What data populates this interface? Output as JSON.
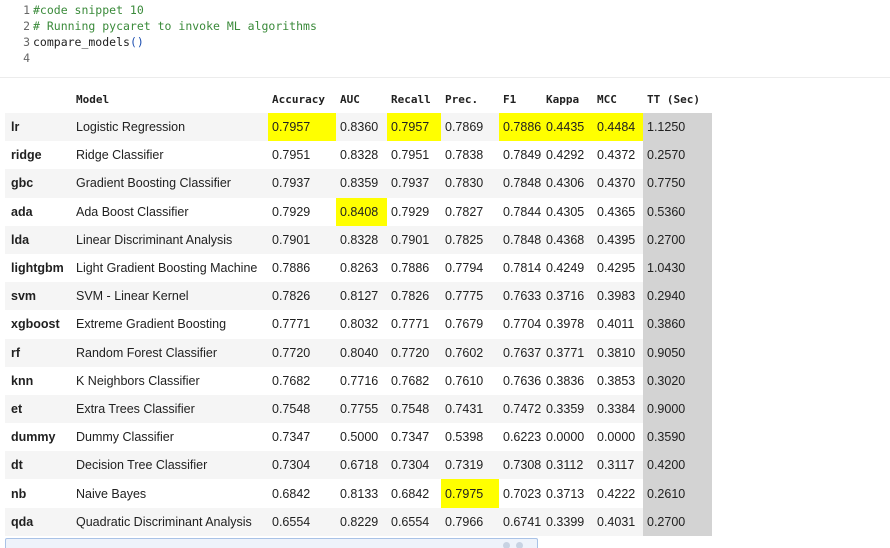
{
  "code": {
    "lines": [
      {
        "no": "1",
        "parts": [
          {
            "cls": "code-comment",
            "text": "#code snippet 10"
          }
        ]
      },
      {
        "no": "2",
        "parts": [
          {
            "cls": "code-comment",
            "text": "# Running pycaret to invoke ML algorithms"
          }
        ]
      },
      {
        "no": "3",
        "parts": [
          {
            "cls": "code-text",
            "text": "compare_models"
          },
          {
            "cls": "code-paren",
            "text": "()"
          }
        ]
      },
      {
        "no": "4",
        "parts": []
      }
    ]
  },
  "table": {
    "index_header": "",
    "columns": [
      "Model",
      "Accuracy",
      "AUC",
      "Recall",
      "Prec.",
      "F1",
      "Kappa",
      "MCC",
      "TT (Sec)"
    ],
    "highlight_color": "#ffff00",
    "tt_color": "#d3d3d3",
    "rows": [
      {
        "id": "lr",
        "cells": [
          "Logistic Regression",
          "0.7957",
          "0.8360",
          "0.7957",
          "0.7869",
          "0.7886",
          "0.4435",
          "0.4484",
          "1.1250"
        ],
        "hl": [
          1,
          3,
          5,
          6,
          7
        ]
      },
      {
        "id": "ridge",
        "cells": [
          "Ridge Classifier",
          "0.7951",
          "0.8328",
          "0.7951",
          "0.7838",
          "0.7849",
          "0.4292",
          "0.4372",
          "0.2570"
        ],
        "hl": []
      },
      {
        "id": "gbc",
        "cells": [
          "Gradient Boosting Classifier",
          "0.7937",
          "0.8359",
          "0.7937",
          "0.7830",
          "0.7848",
          "0.4306",
          "0.4370",
          "0.7750"
        ],
        "hl": []
      },
      {
        "id": "ada",
        "cells": [
          "Ada Boost Classifier",
          "0.7929",
          "0.8408",
          "0.7929",
          "0.7827",
          "0.7844",
          "0.4305",
          "0.4365",
          "0.5360"
        ],
        "hl": [
          2
        ]
      },
      {
        "id": "lda",
        "cells": [
          "Linear Discriminant Analysis",
          "0.7901",
          "0.8328",
          "0.7901",
          "0.7825",
          "0.7848",
          "0.4368",
          "0.4395",
          "0.2700"
        ],
        "hl": []
      },
      {
        "id": "lightgbm",
        "cells": [
          "Light Gradient Boosting Machine",
          "0.7886",
          "0.8263",
          "0.7886",
          "0.7794",
          "0.7814",
          "0.4249",
          "0.4295",
          "1.0430"
        ],
        "hl": []
      },
      {
        "id": "svm",
        "cells": [
          "SVM - Linear Kernel",
          "0.7826",
          "0.8127",
          "0.7826",
          "0.7775",
          "0.7633",
          "0.3716",
          "0.3983",
          "0.2940"
        ],
        "hl": []
      },
      {
        "id": "xgboost",
        "cells": [
          "Extreme Gradient Boosting",
          "0.7771",
          "0.8032",
          "0.7771",
          "0.7679",
          "0.7704",
          "0.3978",
          "0.4011",
          "0.3860"
        ],
        "hl": []
      },
      {
        "id": "rf",
        "cells": [
          "Random Forest Classifier",
          "0.7720",
          "0.8040",
          "0.7720",
          "0.7602",
          "0.7637",
          "0.3771",
          "0.3810",
          "0.9050"
        ],
        "hl": []
      },
      {
        "id": "knn",
        "cells": [
          "K Neighbors Classifier",
          "0.7682",
          "0.7716",
          "0.7682",
          "0.7610",
          "0.7636",
          "0.3836",
          "0.3853",
          "0.3020"
        ],
        "hl": []
      },
      {
        "id": "et",
        "cells": [
          "Extra Trees Classifier",
          "0.7548",
          "0.7755",
          "0.7548",
          "0.7431",
          "0.7472",
          "0.3359",
          "0.3384",
          "0.9000"
        ],
        "hl": []
      },
      {
        "id": "dummy",
        "cells": [
          "Dummy Classifier",
          "0.7347",
          "0.5000",
          "0.7347",
          "0.5398",
          "0.6223",
          "0.0000",
          "0.0000",
          "0.3590"
        ],
        "hl": []
      },
      {
        "id": "dt",
        "cells": [
          "Decision Tree Classifier",
          "0.7304",
          "0.6718",
          "0.7304",
          "0.7319",
          "0.7308",
          "0.3112",
          "0.3117",
          "0.4200"
        ],
        "hl": []
      },
      {
        "id": "nb",
        "cells": [
          "Naive Bayes",
          "0.6842",
          "0.8133",
          "0.6842",
          "0.7975",
          "0.7023",
          "0.3713",
          "0.4222",
          "0.2610"
        ],
        "hl": [
          4
        ]
      },
      {
        "id": "qda",
        "cells": [
          "Quadratic Discriminant Analysis",
          "0.6554",
          "0.8229",
          "0.6554",
          "0.7966",
          "0.6741",
          "0.3399",
          "0.4031",
          "0.2700"
        ],
        "hl": []
      }
    ]
  }
}
